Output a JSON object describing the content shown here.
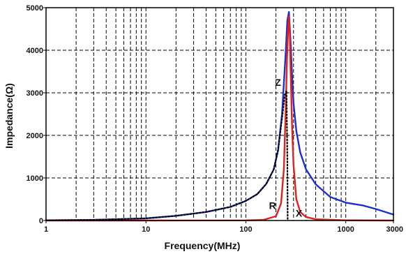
{
  "chart_data": {
    "type": "line",
    "title": "",
    "xlabel": "Frequency(MHz)",
    "ylabel": "Impedance(Ω)",
    "x_scale": "log",
    "xlim": [
      1,
      3000
    ],
    "ylim": [
      0,
      5000
    ],
    "x_ticks": [
      1,
      10,
      100,
      1000,
      3000
    ],
    "x_tick_labels": [
      "1",
      "10",
      "100",
      "1000",
      "3000"
    ],
    "y_ticks": [
      0,
      1000,
      2000,
      3000,
      4000,
      5000
    ],
    "y_tick_labels": [
      "0",
      "1000",
      "2000",
      "3000",
      "4000",
      "5000"
    ],
    "grid": true,
    "legend": "none",
    "series": [
      {
        "name": "Z",
        "color": "#1f2ecc",
        "line_style": "solid",
        "x": [
          1,
          3,
          10,
          20,
          40,
          70,
          100,
          130,
          160,
          190,
          210,
          230,
          250,
          260,
          270,
          280,
          290,
          300,
          320,
          350,
          400,
          500,
          700,
          1000,
          1500,
          2000,
          3000
        ],
        "y": [
          5,
          15,
          50,
          110,
          200,
          320,
          460,
          620,
          860,
          1200,
          1650,
          2500,
          3900,
          4700,
          4900,
          4200,
          3400,
          2750,
          2100,
          1600,
          1200,
          850,
          550,
          420,
          350,
          270,
          140
        ]
      },
      {
        "name": "R",
        "color": "#e0201a",
        "line_style": "solid",
        "x": [
          1,
          10,
          100,
          150,
          200,
          225,
          240,
          250,
          258,
          265,
          270,
          275,
          280,
          290,
          300,
          320,
          350,
          400,
          500,
          1000,
          3000
        ],
        "y": [
          0,
          0,
          3,
          15,
          100,
          400,
          1200,
          2500,
          3800,
          4500,
          4800,
          4400,
          3600,
          2200,
          1300,
          500,
          200,
          80,
          30,
          5,
          0
        ]
      },
      {
        "name": "X",
        "color": "#000000",
        "line_style": "dotted",
        "x": [
          1,
          3,
          10,
          20,
          40,
          70,
          100,
          130,
          160,
          190,
          210,
          230,
          245,
          255,
          260,
          262
        ],
        "y": [
          5,
          15,
          50,
          110,
          200,
          320,
          460,
          620,
          860,
          1200,
          1650,
          2400,
          2950,
          3050,
          1500,
          0
        ]
      }
    ],
    "annotations": [
      {
        "text": "Z",
        "x": 210,
        "y": 3250
      },
      {
        "text": "R",
        "x": 185,
        "y": 350
      },
      {
        "text": "X",
        "x": 340,
        "y": 170
      }
    ]
  }
}
